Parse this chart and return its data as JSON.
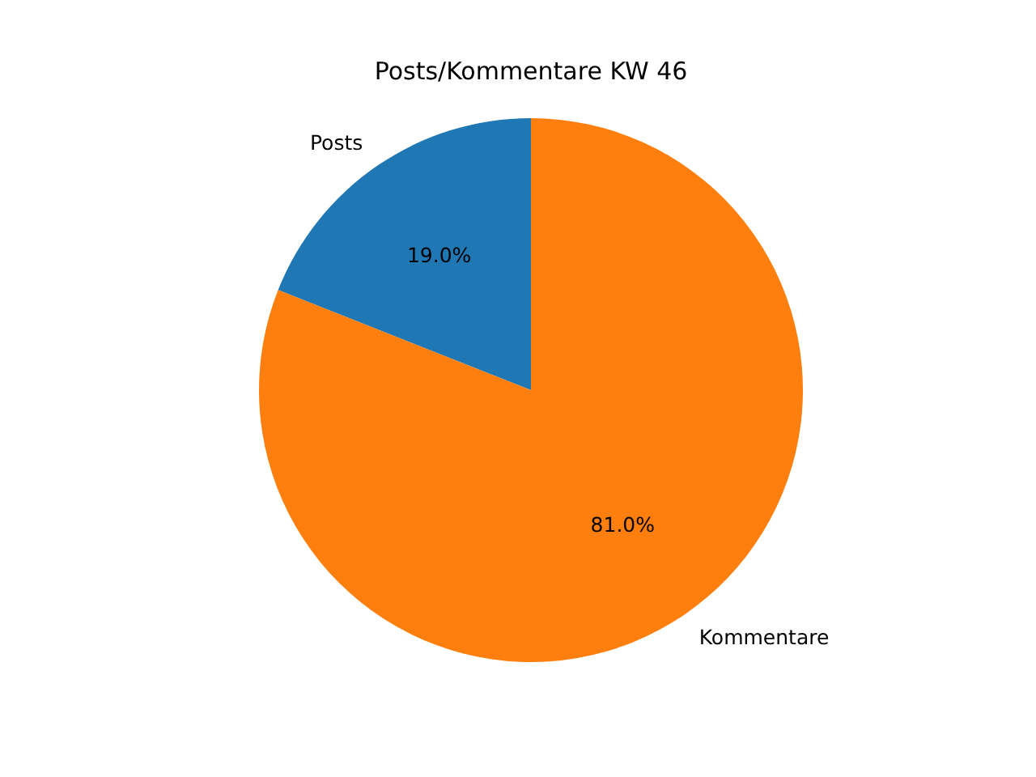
{
  "chart_data": {
    "type": "pie",
    "title": "Posts/Kommentare KW 46",
    "categories": [
      "Posts",
      "Kommentare"
    ],
    "values": [
      19,
      81
    ],
    "colors": [
      "#1f77b4",
      "#ff7f0e"
    ],
    "value_labels": [
      "19.0%",
      "81.0%"
    ]
  }
}
